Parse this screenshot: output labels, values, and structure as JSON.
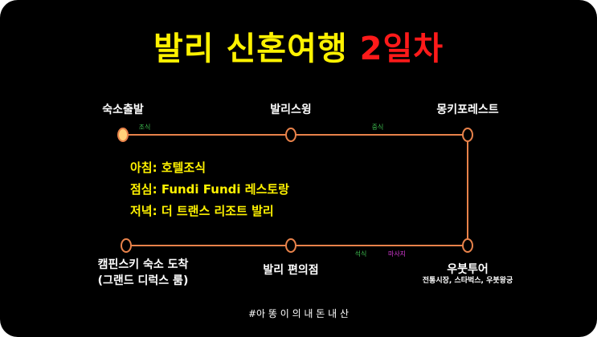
{
  "title": {
    "main": "발리 신혼여행",
    "day": "2일차"
  },
  "colors": {
    "line": "#e8824a",
    "start_fill": "#ffd27a",
    "title_yellow": "#fff200",
    "title_red": "#ff1a1a",
    "meal_green": "#3dbb4e",
    "massage_pink": "#d63ad6"
  },
  "stops": {
    "start": "숙소출발",
    "swing": "발리스윙",
    "monkey": "몽키포레스트",
    "ubud": "우붓투어",
    "ubud_detail": "전통시장, 스타벅스, 우붓왕궁",
    "store": "발리 편의점",
    "hotel_line1": "캠핀스키 숙소 도착",
    "hotel_line2": "(그랜드 디럭스 룸)"
  },
  "segment_labels": {
    "breakfast": "조식",
    "lunch": "중식",
    "dinner": "석식",
    "massage": "마사지"
  },
  "meals": [
    "아침: 호텔조식",
    "점심: Fundi Fundi 레스토랑",
    "저녁: 더 트랜스 리조트 발리"
  ],
  "footer": "#아 똥 이 의 내 돈 내 산"
}
